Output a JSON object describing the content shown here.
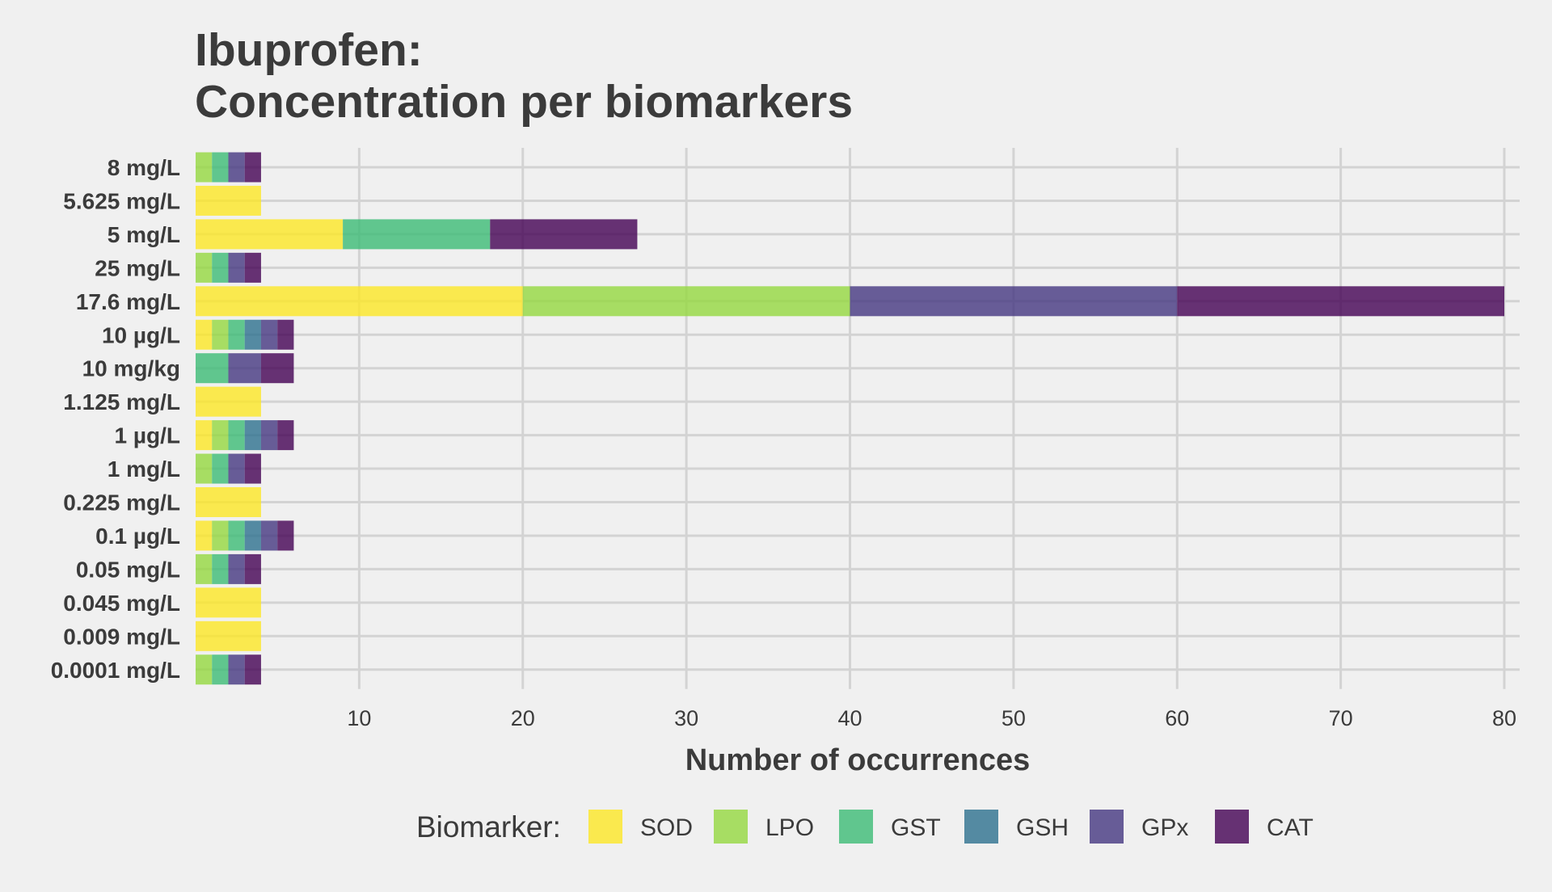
{
  "chart_data": {
    "type": "bar",
    "orientation": "horizontal",
    "stacked": true,
    "title_lines": [
      "Ibuprofen:",
      "Concentration per biomarkers"
    ],
    "xlabel": "Number of occurrences",
    "ylabel": "",
    "xlim": [
      0,
      80
    ],
    "xticks": [
      10,
      20,
      30,
      40,
      50,
      60,
      70,
      80
    ],
    "grid": true,
    "legend": {
      "title": "Biomarker:",
      "placement": "bottom"
    },
    "categories": [
      "8 mg/L",
      "5.625 mg/L",
      "5 mg/L",
      "25 mg/L",
      "17.6 mg/L",
      "10 µg/L",
      "10 mg/kg",
      "1.125 mg/L",
      "1 µg/L",
      "1 mg/L",
      "0.225 mg/L",
      "0.1 µg/L",
      "0.05 mg/L",
      "0.045 mg/L",
      "0.009 mg/L",
      "0.0001 mg/L"
    ],
    "series": [
      {
        "name": "SOD",
        "color": "#fde725",
        "values": [
          0,
          4,
          9,
          0,
          20,
          1,
          0,
          4,
          1,
          0,
          4,
          1,
          0,
          4,
          4,
          0
        ]
      },
      {
        "name": "LPO",
        "color": "#95d840",
        "values": [
          1,
          0,
          0,
          1,
          20,
          1,
          0,
          0,
          1,
          1,
          0,
          1,
          1,
          0,
          0,
          1
        ]
      },
      {
        "name": "GST",
        "color": "#3cbb75",
        "values": [
          1,
          0,
          9,
          1,
          0,
          1,
          2,
          0,
          1,
          1,
          0,
          1,
          1,
          0,
          0,
          1
        ]
      },
      {
        "name": "GSH",
        "color": "#2d708e",
        "values": [
          0,
          0,
          0,
          0,
          0,
          1,
          0,
          0,
          1,
          0,
          0,
          1,
          0,
          0,
          0,
          0
        ]
      },
      {
        "name": "GPx",
        "color": "#453781",
        "values": [
          1,
          0,
          0,
          1,
          20,
          1,
          2,
          0,
          1,
          1,
          0,
          1,
          1,
          0,
          0,
          1
        ]
      },
      {
        "name": "CAT",
        "color": "#440154",
        "values": [
          1,
          0,
          9,
          1,
          20,
          1,
          2,
          0,
          1,
          1,
          0,
          1,
          1,
          0,
          0,
          1
        ]
      }
    ]
  }
}
